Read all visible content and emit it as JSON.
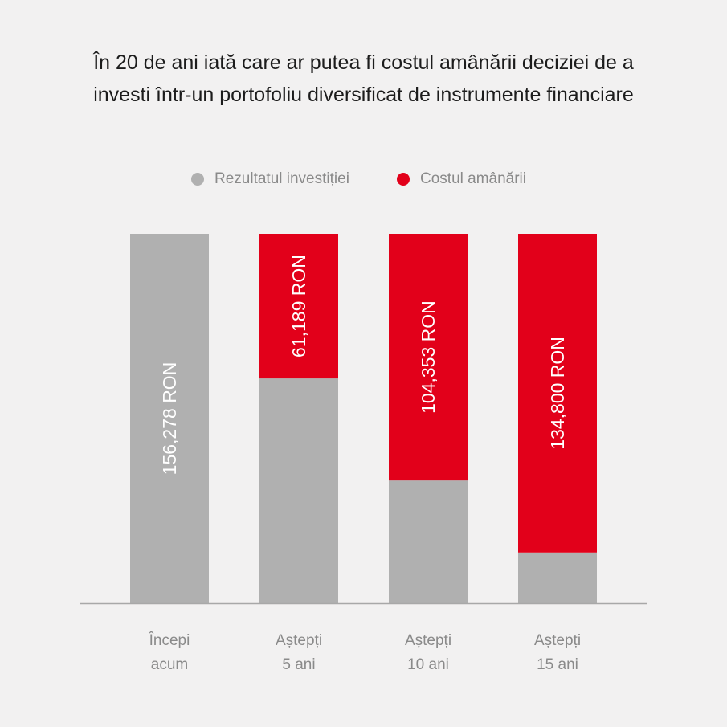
{
  "chart_data": {
    "type": "bar",
    "stacked": true,
    "title": "În 20 de ani iată care ar putea fi costul amânării deciziei de a investi într-un portofoliu diversificat de instrumente financiare",
    "categories": [
      [
        "Începi",
        "acum"
      ],
      [
        "Aștepți",
        "5 ani"
      ],
      [
        "Aștepți",
        "10 ani"
      ],
      [
        "Aștepți",
        "15 ani"
      ]
    ],
    "series": [
      {
        "name": "Rezultatul investiției",
        "color": "#b0b0b0",
        "values": [
          156278,
          95089,
          51925,
          21478
        ],
        "labels": [
          "156,278 RON",
          "",
          "",
          ""
        ]
      },
      {
        "name": "Costul amânării",
        "color": "#e2001a",
        "values": [
          0,
          61189,
          104353,
          134800
        ],
        "labels": [
          "",
          "61,189 RON",
          "104,353 RON",
          "134,800 RON"
        ]
      }
    ],
    "ylim": [
      0,
      156278
    ],
    "grid": false,
    "legend": "top-center"
  }
}
